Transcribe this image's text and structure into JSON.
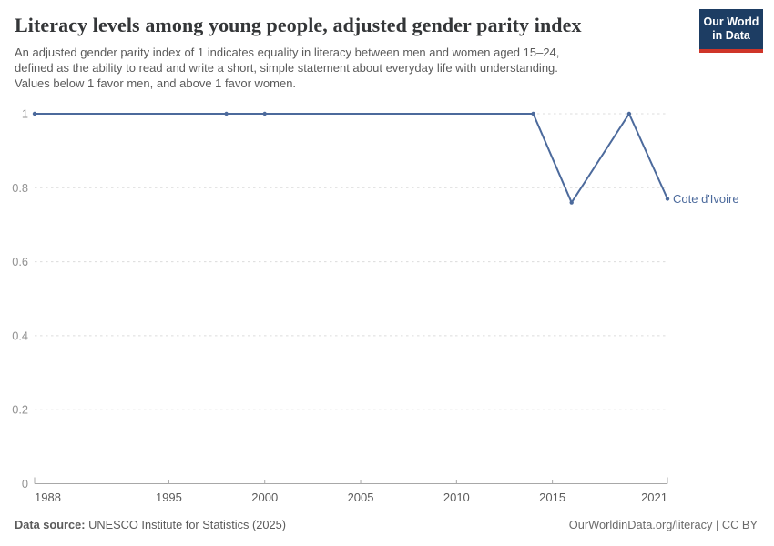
{
  "header": {
    "title": "Literacy levels among young people, adjusted gender parity index",
    "subtitle_lines": [
      "An adjusted gender parity index of 1 indicates equality in literacy between men and women aged 15–24,",
      "defined as the ability to read and write a short, simple statement about everyday life with understanding.",
      "Values below 1 favor men, and above 1 favor women."
    ]
  },
  "logo": {
    "line1": "Our World",
    "line2": "in Data",
    "bg_color": "#1d3d63",
    "stripe_color": "#cf3529"
  },
  "chart_data": {
    "type": "line",
    "title": "Literacy levels among young people, adjusted gender parity index",
    "xlabel": "",
    "ylabel": "",
    "xlim": [
      1988,
      2021
    ],
    "ylim": [
      0,
      1
    ],
    "x_ticks": [
      1988,
      1995,
      2000,
      2005,
      2010,
      2015,
      2021
    ],
    "y_ticks": [
      0,
      0.2,
      0.4,
      0.6,
      0.8,
      1
    ],
    "grid": "horizontal-dashed",
    "legend_position": "end-of-line-label",
    "series": [
      {
        "name": "Cote d'Ivoire",
        "color": "#4c6a9c",
        "x": [
          1988,
          1998,
          2000,
          2014,
          2016,
          2019,
          2021
        ],
        "values": [
          1,
          1,
          1,
          1,
          0.76,
          1,
          0.77
        ]
      }
    ],
    "entity_label": "Cote d'Ivoire"
  },
  "colors": {
    "line": "#4c6a9c",
    "gridline": "#dcdcdc",
    "axis": "#a8a8a8",
    "y_tick_label": "#929292",
    "x_tick_label": "#5b5b5b"
  },
  "footer": {
    "source_label": "Data source:",
    "source_text": " UNESCO Institute for Statistics (2025)",
    "right_text": "OurWorldinData.org/literacy | CC BY"
  }
}
